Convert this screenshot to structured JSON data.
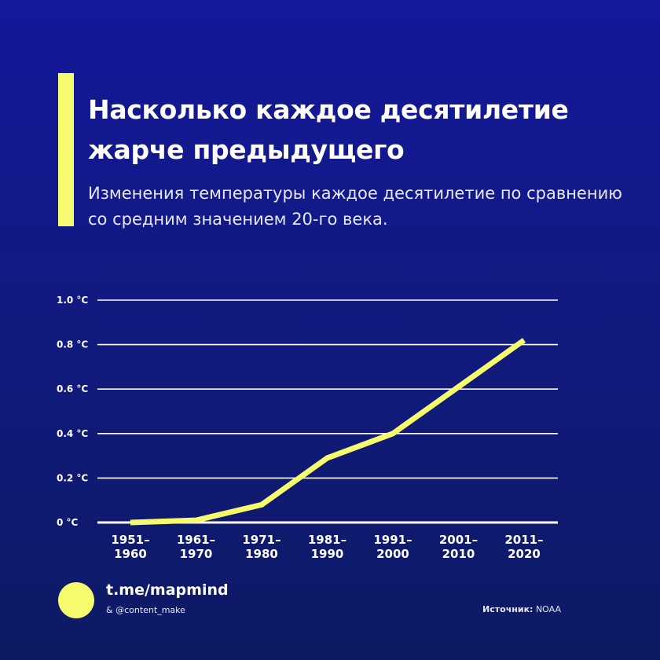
{
  "colors": {
    "accent": "#f5fb6c",
    "background": "#14189a",
    "grid": "#ffffff"
  },
  "header": {
    "title": "Насколько каждое десятилетие жарче предыдущего",
    "subtitle": "Изменения температуры каждое десятилетие по сравнению со средним значением 20-го века."
  },
  "chart_data": {
    "type": "line",
    "title": "Насколько каждое десятилетие жарче предыдущего",
    "subtitle": "Изменения температуры каждое десятилетие по сравнению со средним значением 20-го века.",
    "xlabel": "",
    "ylabel": "",
    "categories": [
      [
        "1951–",
        "1960"
      ],
      [
        "1961–",
        "1970"
      ],
      [
        "1971–",
        "1980"
      ],
      [
        "1981–",
        "1990"
      ],
      [
        "1991–",
        "2000"
      ],
      [
        "2001–",
        "2010"
      ],
      [
        "2011–",
        "2020"
      ]
    ],
    "values": [
      0.0,
      0.01,
      0.08,
      0.29,
      0.4,
      0.61,
      0.82
    ],
    "ylim": [
      0,
      1.0
    ],
    "yticks": [
      0,
      0.2,
      0.4,
      0.6,
      0.8,
      1.0
    ],
    "ytick_labels": [
      "0 °C",
      "0.2 °C",
      "0.4 °C",
      "0.6 °C",
      "0.8 °C",
      "1.0 °C"
    ],
    "grid": true,
    "legend": "none"
  },
  "footer": {
    "brand": "t.me/mapmind",
    "brand_sub": "& @content_make",
    "source_label": "Источник:",
    "source_value": "NOAA"
  }
}
